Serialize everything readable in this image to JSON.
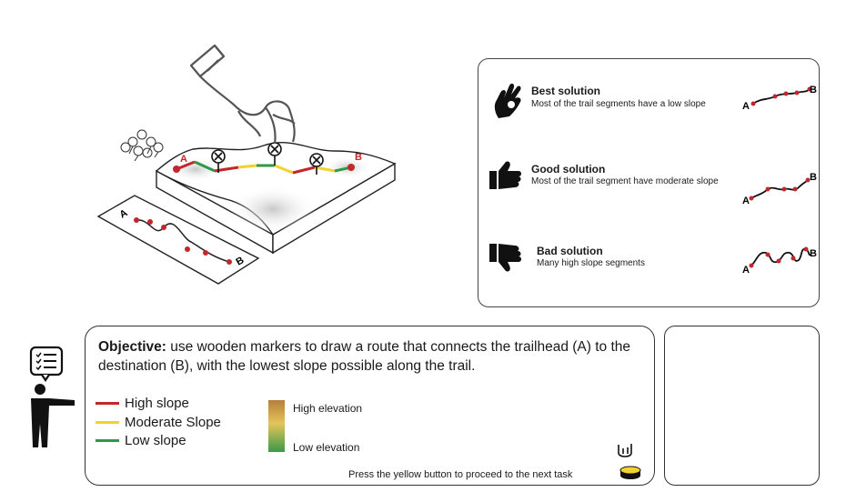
{
  "diagram": {
    "point_a": "A",
    "point_b": "B"
  },
  "solutions": [
    {
      "title": "Best solution",
      "description": "Most of the trail segments have  a low slope",
      "icon": "ok-hand-icon"
    },
    {
      "title": "Good solution",
      "description": "Most of the trail segment have moderate slope",
      "icon": "thumbs-up-icon"
    },
    {
      "title": "Bad solution",
      "description": "Many high slope segments",
      "icon": "thumbs-down-icon"
    }
  ],
  "objective": {
    "label": "Objective:",
    "text": " use wooden markers to draw a route that connects the trailhead (A) to the destination (B), with the lowest slope possible along the trail."
  },
  "slope_legend": [
    {
      "label": "High slope",
      "color": "#c0282d"
    },
    {
      "label": "Moderate Slope",
      "color": "#f2d22e"
    },
    {
      "label": "Low slope",
      "color": "#2e9a48"
    }
  ],
  "elevation_legend": {
    "high": "High elevation",
    "low": "Low elevation",
    "colors": [
      "#b5803a",
      "#e4c45a",
      "#3a9a48"
    ]
  },
  "footer": {
    "proceed_text": "Press the yellow button to proceed to the next task"
  },
  "colors": {
    "trail_red": "#c0282d",
    "trail_yellow": "#f2d22e",
    "trail_green": "#2e9a48",
    "button_yellow": "#f2d22e"
  }
}
